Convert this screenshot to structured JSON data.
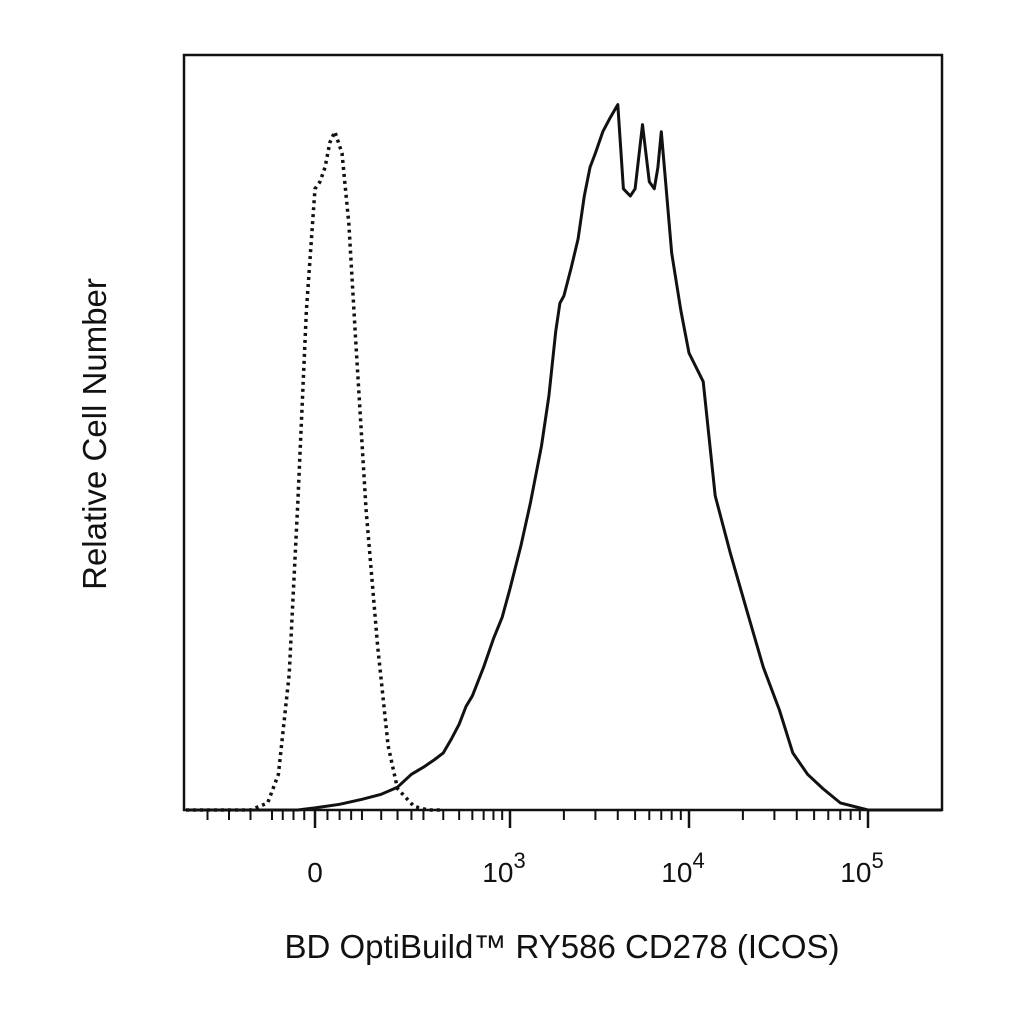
{
  "chart_data": {
    "type": "area",
    "title": "",
    "xlabel": "BD OptiBuild™ RY586 CD278 (ICOS)",
    "ylabel": "Relative Cell Number",
    "x_scale": "biexponential",
    "xlim": [
      -300,
      200000
    ],
    "ylim": [
      0,
      1.0
    ],
    "grid": false,
    "legend": "none",
    "x_ticks": [
      {
        "value": 0,
        "base": "0",
        "exp": ""
      },
      {
        "value": 1000,
        "base": "10",
        "exp": "3"
      },
      {
        "value": 10000,
        "base": "10",
        "exp": "4"
      },
      {
        "value": 100000,
        "base": "10",
        "exp": "5"
      }
    ],
    "series": [
      {
        "style": "dotted",
        "color": "#111111",
        "x": [
          -300,
          -150,
          -110,
          -85,
          -60,
          -40,
          -20,
          0,
          10,
          20,
          30,
          40,
          55,
          70,
          85,
          110,
          140,
          170,
          200,
          260,
          320,
          400
        ],
        "y": [
          0.0,
          0.0,
          0.01,
          0.05,
          0.19,
          0.43,
          0.7,
          0.87,
          0.88,
          0.9,
          0.935,
          0.95,
          0.92,
          0.82,
          0.66,
          0.42,
          0.23,
          0.09,
          0.03,
          0.005,
          0.0,
          0.0
        ]
      },
      {
        "style": "solid",
        "color": "#111111",
        "x": [
          -300,
          -40,
          0,
          50,
          100,
          150,
          200,
          250,
          300,
          350,
          400,
          450,
          500,
          550,
          600,
          700,
          800,
          900,
          1000,
          1150,
          1300,
          1500,
          1650,
          1800,
          1900,
          2000,
          2200,
          2400,
          2600,
          2800,
          3000,
          3300,
          3600,
          4000,
          4300,
          4700,
          5000,
          5500,
          6000,
          6400,
          6700,
          7000,
          7400,
          8000,
          9000,
          10000,
          12000,
          14000,
          17000,
          21000,
          26000,
          32000,
          38000,
          46000,
          56000,
          70000,
          100000,
          200000
        ],
        "y": [
          0.0,
          0.0,
          0.003,
          0.008,
          0.015,
          0.022,
          0.032,
          0.05,
          0.06,
          0.07,
          0.08,
          0.1,
          0.12,
          0.145,
          0.16,
          0.2,
          0.24,
          0.27,
          0.31,
          0.37,
          0.43,
          0.51,
          0.58,
          0.67,
          0.71,
          0.72,
          0.76,
          0.8,
          0.86,
          0.9,
          0.92,
          0.95,
          0.968,
          0.988,
          0.87,
          0.86,
          0.87,
          0.96,
          0.88,
          0.87,
          0.9,
          0.95,
          0.88,
          0.78,
          0.7,
          0.64,
          0.6,
          0.44,
          0.36,
          0.28,
          0.2,
          0.14,
          0.08,
          0.05,
          0.03,
          0.01,
          0.0,
          0.0
        ]
      }
    ]
  }
}
